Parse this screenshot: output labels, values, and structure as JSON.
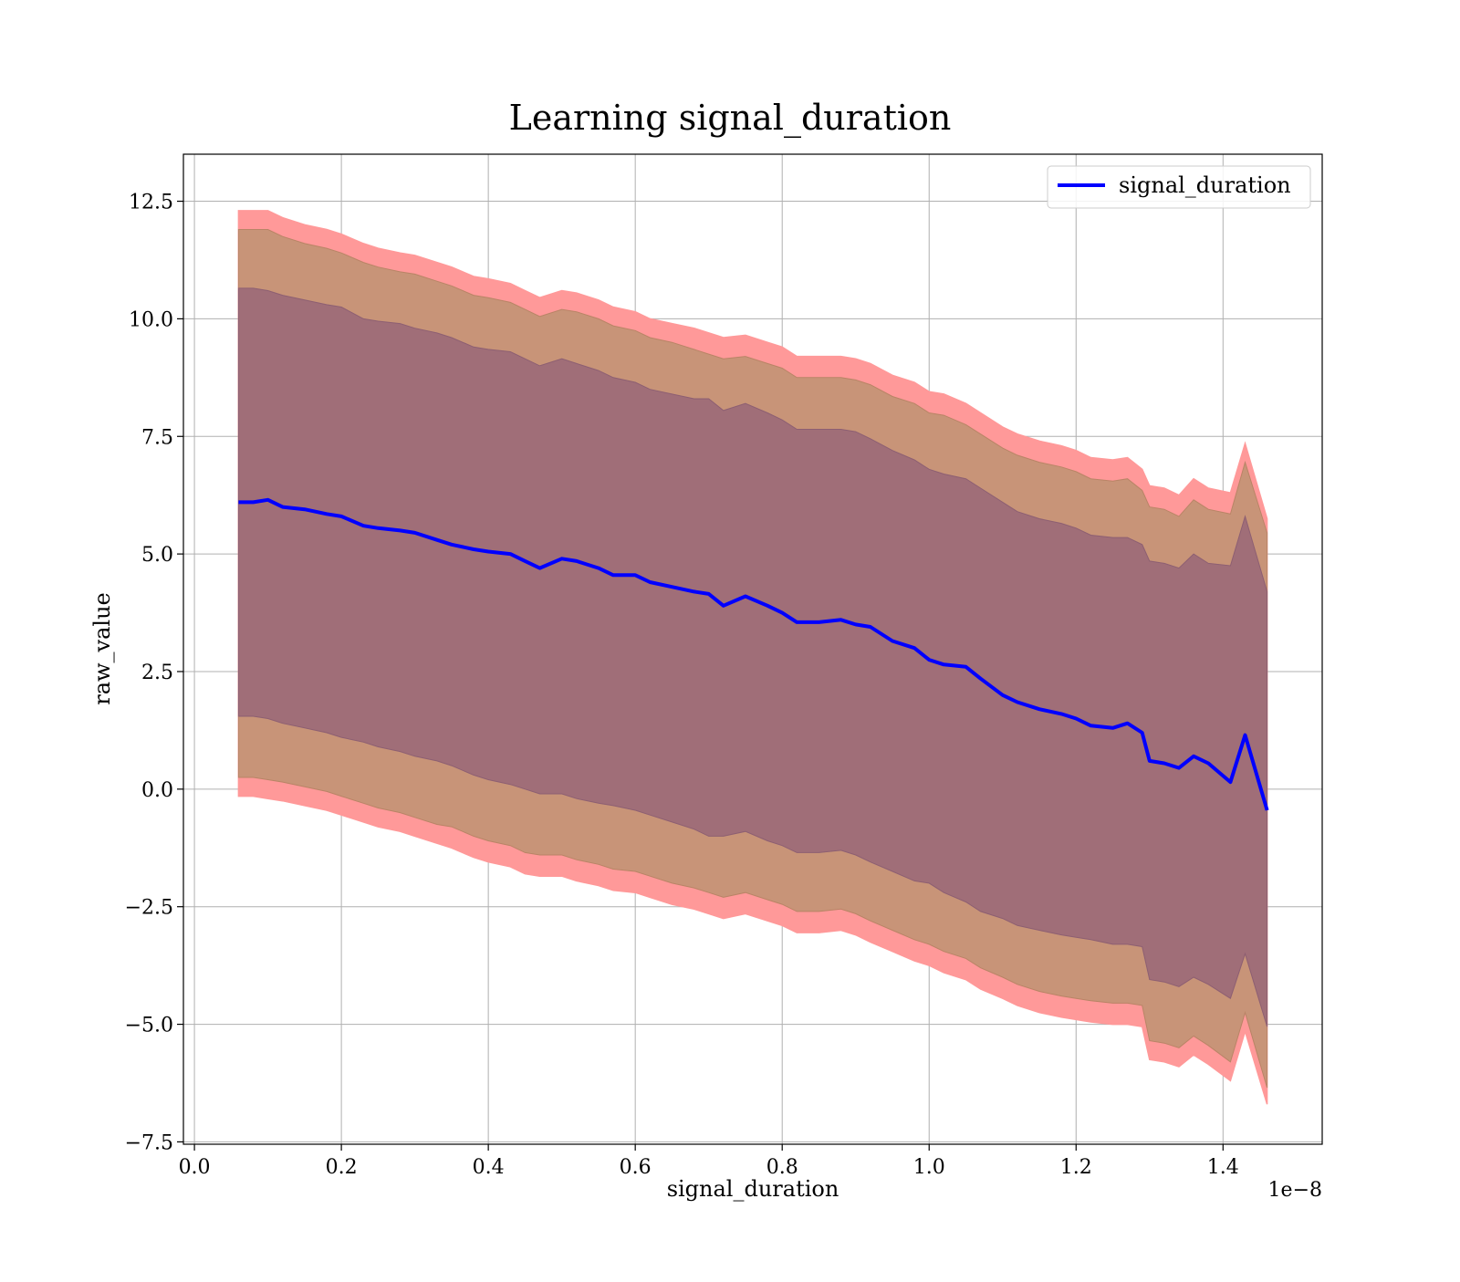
{
  "chart_data": {
    "type": "line",
    "title": "Learning signal_duration",
    "xlabel": "signal_duration",
    "ylabel": "raw_value",
    "x_offset_text": "1e−8",
    "xlim": [
      -0.015,
      1.535
    ],
    "ylim": [
      -7.55,
      13.5
    ],
    "x_ticks": [
      0.0,
      0.2,
      0.4,
      0.6,
      0.8,
      1.0,
      1.2,
      1.4
    ],
    "x_tick_labels": [
      "0.0",
      "0.2",
      "0.4",
      "0.6",
      "0.8",
      "1.0",
      "1.2",
      "1.4"
    ],
    "y_ticks": [
      -7.5,
      -5.0,
      -2.5,
      0.0,
      2.5,
      5.0,
      7.5,
      10.0,
      12.5
    ],
    "y_tick_labels": [
      "−7.5",
      "−5.0",
      "−2.5",
      "0.0",
      "2.5",
      "5.0",
      "7.5",
      "10.0",
      "12.5"
    ],
    "grid": true,
    "legend": {
      "position": "upper right",
      "entries": [
        "signal_duration"
      ]
    },
    "series": [
      {
        "name": "signal_duration",
        "color": "#0000ff",
        "x": [
          0.06,
          0.08,
          0.1,
          0.12,
          0.15,
          0.18,
          0.2,
          0.23,
          0.25,
          0.28,
          0.3,
          0.33,
          0.35,
          0.38,
          0.4,
          0.43,
          0.45,
          0.47,
          0.5,
          0.52,
          0.55,
          0.57,
          0.6,
          0.62,
          0.65,
          0.68,
          0.7,
          0.72,
          0.75,
          0.78,
          0.8,
          0.82,
          0.85,
          0.88,
          0.9,
          0.92,
          0.95,
          0.98,
          1.0,
          1.02,
          1.05,
          1.07,
          1.1,
          1.12,
          1.15,
          1.18,
          1.2,
          1.22,
          1.25,
          1.27,
          1.29,
          1.3,
          1.32,
          1.34,
          1.36,
          1.38,
          1.41,
          1.43,
          1.46
        ],
        "y": [
          6.1,
          6.1,
          6.15,
          6.0,
          5.95,
          5.85,
          5.8,
          5.6,
          5.55,
          5.5,
          5.45,
          5.3,
          5.2,
          5.1,
          5.05,
          5.0,
          4.85,
          4.7,
          4.9,
          4.85,
          4.7,
          4.55,
          4.55,
          4.4,
          4.3,
          4.2,
          4.15,
          3.9,
          4.1,
          3.9,
          3.75,
          3.55,
          3.55,
          3.6,
          3.5,
          3.45,
          3.15,
          3.0,
          2.75,
          2.65,
          2.6,
          2.35,
          2.0,
          1.85,
          1.7,
          1.6,
          1.5,
          1.35,
          1.3,
          1.4,
          1.2,
          0.6,
          0.55,
          0.45,
          0.7,
          0.55,
          0.15,
          1.15,
          -0.45
        ],
        "band_inner_upper": [
          10.65,
          10.65,
          10.6,
          10.5,
          10.4,
          10.3,
          10.25,
          10.0,
          9.95,
          9.9,
          9.8,
          9.7,
          9.6,
          9.4,
          9.35,
          9.3,
          9.15,
          9.0,
          9.15,
          9.05,
          8.9,
          8.75,
          8.65,
          8.5,
          8.4,
          8.3,
          8.3,
          8.05,
          8.2,
          8.0,
          7.85,
          7.65,
          7.65,
          7.65,
          7.6,
          7.45,
          7.2,
          7.0,
          6.8,
          6.7,
          6.6,
          6.4,
          6.1,
          5.9,
          5.75,
          5.65,
          5.55,
          5.4,
          5.35,
          5.35,
          5.2,
          4.85,
          4.8,
          4.7,
          5.0,
          4.8,
          4.75,
          5.8,
          4.2
        ],
        "band_inner_lower": [
          1.55,
          1.55,
          1.5,
          1.4,
          1.3,
          1.2,
          1.1,
          1.0,
          0.9,
          0.8,
          0.7,
          0.6,
          0.5,
          0.3,
          0.2,
          0.1,
          0.0,
          -0.1,
          -0.1,
          -0.2,
          -0.3,
          -0.35,
          -0.45,
          -0.55,
          -0.7,
          -0.85,
          -1.0,
          -1.0,
          -0.9,
          -1.1,
          -1.2,
          -1.35,
          -1.35,
          -1.3,
          -1.4,
          -1.55,
          -1.75,
          -1.95,
          -2.0,
          -2.2,
          -2.4,
          -2.6,
          -2.75,
          -2.9,
          -3.0,
          -3.1,
          -3.15,
          -3.2,
          -3.3,
          -3.3,
          -3.35,
          -4.05,
          -4.1,
          -4.2,
          -4.0,
          -4.15,
          -4.45,
          -3.5,
          -5.05
        ],
        "band_mid_upper": [
          11.9,
          11.9,
          11.9,
          11.75,
          11.6,
          11.5,
          11.4,
          11.2,
          11.1,
          11.0,
          10.95,
          10.8,
          10.7,
          10.5,
          10.45,
          10.35,
          10.2,
          10.05,
          10.2,
          10.15,
          10.0,
          9.85,
          9.75,
          9.6,
          9.5,
          9.35,
          9.25,
          9.15,
          9.2,
          9.05,
          8.95,
          8.75,
          8.75,
          8.75,
          8.7,
          8.6,
          8.35,
          8.2,
          8.0,
          7.95,
          7.75,
          7.55,
          7.25,
          7.1,
          6.95,
          6.85,
          6.75,
          6.6,
          6.55,
          6.6,
          6.35,
          6.0,
          5.95,
          5.8,
          6.15,
          5.95,
          5.85,
          6.95,
          5.45
        ],
        "band_mid_lower": [
          0.25,
          0.25,
          0.2,
          0.15,
          0.05,
          -0.05,
          -0.15,
          -0.3,
          -0.4,
          -0.5,
          -0.6,
          -0.75,
          -0.8,
          -1.0,
          -1.1,
          -1.2,
          -1.35,
          -1.4,
          -1.4,
          -1.5,
          -1.6,
          -1.7,
          -1.75,
          -1.85,
          -2.0,
          -2.1,
          -2.2,
          -2.3,
          -2.2,
          -2.35,
          -2.45,
          -2.6,
          -2.6,
          -2.55,
          -2.65,
          -2.8,
          -3.0,
          -3.2,
          -3.3,
          -3.45,
          -3.6,
          -3.8,
          -4.0,
          -4.15,
          -4.3,
          -4.4,
          -4.45,
          -4.5,
          -4.55,
          -4.55,
          -4.6,
          -5.35,
          -5.4,
          -5.5,
          -5.25,
          -5.45,
          -5.8,
          -4.75,
          -6.35
        ],
        "band_outer_upper": [
          12.3,
          12.3,
          12.3,
          12.15,
          12.0,
          11.9,
          11.8,
          11.6,
          11.5,
          11.4,
          11.35,
          11.2,
          11.1,
          10.9,
          10.85,
          10.75,
          10.6,
          10.45,
          10.6,
          10.55,
          10.4,
          10.25,
          10.15,
          10.0,
          9.9,
          9.8,
          9.7,
          9.6,
          9.65,
          9.5,
          9.4,
          9.2,
          9.2,
          9.2,
          9.15,
          9.05,
          8.8,
          8.65,
          8.45,
          8.4,
          8.2,
          8.0,
          7.7,
          7.55,
          7.4,
          7.3,
          7.2,
          7.05,
          7.0,
          7.05,
          6.8,
          6.45,
          6.4,
          6.25,
          6.6,
          6.4,
          6.3,
          7.35,
          5.75
        ],
        "band_outer_lower": [
          -0.15,
          -0.15,
          -0.2,
          -0.25,
          -0.35,
          -0.45,
          -0.55,
          -0.7,
          -0.8,
          -0.9,
          -1.0,
          -1.15,
          -1.25,
          -1.45,
          -1.55,
          -1.65,
          -1.8,
          -1.85,
          -1.85,
          -1.95,
          -2.05,
          -2.15,
          -2.2,
          -2.3,
          -2.45,
          -2.55,
          -2.65,
          -2.75,
          -2.65,
          -2.8,
          -2.9,
          -3.05,
          -3.05,
          -3.0,
          -3.1,
          -3.25,
          -3.45,
          -3.65,
          -3.75,
          -3.9,
          -4.05,
          -4.25,
          -4.45,
          -4.6,
          -4.75,
          -4.85,
          -4.9,
          -4.95,
          -5.0,
          -5.0,
          -5.05,
          -5.75,
          -5.8,
          -5.9,
          -5.65,
          -5.85,
          -6.2,
          -5.15,
          -6.7
        ],
        "band_colors": {
          "outer": "#ff9999",
          "mid": "#c89478",
          "inner": "#a06e78"
        }
      }
    ]
  }
}
